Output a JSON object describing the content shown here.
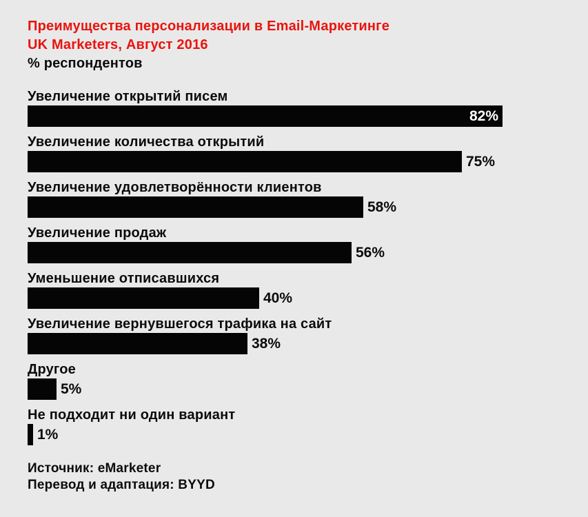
{
  "header": {
    "title_line1": "Преимущества персонализации в Email-Маркетинге",
    "title_line2": "UK Marketers, Август 2016",
    "unit": "% респондентов"
  },
  "footer": {
    "source": "Источник: eMarketer",
    "translation": "Перевод и адаптация: BYYD"
  },
  "colors": {
    "background": "#e9e9e9",
    "title_red": "#e9140e",
    "bar_black": "#050505",
    "text_black": "#0b0b0b",
    "value_inside_white": "#ffffff"
  },
  "chart_data": {
    "type": "bar",
    "orientation": "horizontal",
    "title": "Преимущества персонализации в Email-Маркетинге",
    "subtitle": "UK Marketers, Август 2016",
    "unit": "% респондентов",
    "categories": [
      "Увеличение открытий писем",
      "Увеличение количества открытий",
      "Увеличение удовлетворённости клиентов",
      "Увеличение продаж",
      "Уменьшение отписавшихся",
      "Увеличение вернувшегося трафика на сайт",
      "Другое",
      "Не подходит ни один вариант"
    ],
    "values": [
      82,
      75,
      58,
      56,
      40,
      38,
      5,
      1
    ],
    "value_labels": [
      "82%",
      "75%",
      "58%",
      "56%",
      "40%",
      "38%",
      "5%",
      "1%"
    ],
    "value_label_position": [
      "inside",
      "outside",
      "outside",
      "outside",
      "outside",
      "outside",
      "outside",
      "outside"
    ],
    "xlim": [
      0,
      100
    ],
    "grid": false,
    "legend": false,
    "bar_color": "#050505"
  }
}
